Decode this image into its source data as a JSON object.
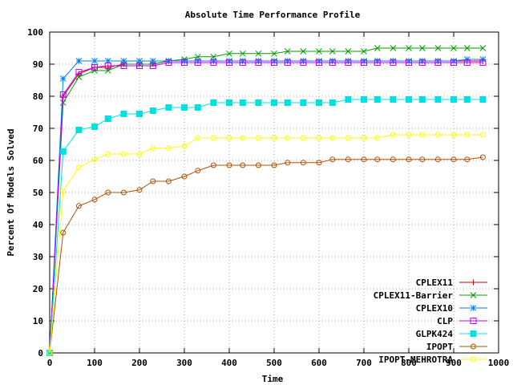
{
  "chart_data": {
    "type": "line",
    "title": "Absolute Time Performance Profile",
    "xlabel": "Time",
    "ylabel": "Percent Of Models Solved",
    "xlim": [
      0,
      1000
    ],
    "ylim": [
      0,
      100
    ],
    "xticks": [
      0,
      100,
      200,
      300,
      400,
      500,
      600,
      700,
      800,
      900,
      1000
    ],
    "yticks": [
      0,
      10,
      20,
      30,
      40,
      50,
      60,
      70,
      80,
      90,
      100
    ],
    "legend_position": "bottom-right",
    "x": [
      0,
      30,
      65,
      100,
      130,
      165,
      200,
      230,
      265,
      300,
      330,
      365,
      400,
      430,
      465,
      500,
      530,
      565,
      600,
      630,
      665,
      700,
      730,
      765,
      800,
      830,
      865,
      900,
      930,
      965
    ],
    "series": [
      {
        "name": "CPLEX11",
        "color": "#c00000",
        "marker": "plus",
        "values": [
          0,
          80,
          87,
          89,
          89,
          90,
          90,
          90,
          91,
          91,
          91,
          91,
          91,
          91,
          91,
          91,
          91,
          91,
          91,
          91,
          91,
          91,
          91,
          91,
          91,
          91,
          91,
          91,
          91,
          91
        ]
      },
      {
        "name": "CPLEX11-Barrier",
        "color": "#00a000",
        "marker": "x",
        "values": [
          0,
          78,
          86,
          88,
          88,
          90,
          90,
          90,
          91,
          91.5,
          92.3,
          92.3,
          93.3,
          93.3,
          93.3,
          93.3,
          94,
          94,
          94,
          94,
          94,
          94,
          95,
          95,
          95,
          95,
          95,
          95,
          95,
          95
        ]
      },
      {
        "name": "CPLEX10",
        "color": "#0080ff",
        "marker": "star",
        "values": [
          0,
          85.5,
          91,
          91,
          91,
          91,
          91,
          91,
          91,
          91,
          91,
          91,
          91,
          91,
          91,
          91,
          91,
          91,
          91,
          91,
          91,
          91,
          91,
          91,
          91,
          91,
          91,
          91,
          91.5,
          91.5
        ]
      },
      {
        "name": "CLP",
        "color": "#c000ff",
        "marker": "square-open",
        "values": [
          0,
          80.5,
          87.5,
          89,
          89.5,
          89.5,
          89.5,
          89.5,
          90.5,
          90.5,
          90.5,
          90.5,
          90.5,
          90.5,
          90.5,
          90.5,
          90.5,
          90.5,
          90.5,
          90.5,
          90.5,
          90.5,
          90.5,
          90.5,
          90.5,
          90.5,
          90.5,
          90.5,
          90.5,
          90.5
        ]
      },
      {
        "name": "GLPK424",
        "color": "#00e0e0",
        "marker": "square-filled",
        "values": [
          0,
          62.8,
          69.5,
          70.5,
          73,
          74.5,
          74.5,
          75.5,
          76.5,
          76.5,
          76.5,
          78,
          78,
          78,
          78,
          78,
          78,
          78,
          78,
          78,
          79,
          79,
          79,
          79,
          79,
          79,
          79,
          79,
          79,
          79
        ]
      },
      {
        "name": "IPOPT",
        "color": "#b05000",
        "marker": "circle",
        "values": [
          0,
          37.5,
          45.8,
          47.8,
          50,
          50,
          50.8,
          53.5,
          53.5,
          55,
          56.8,
          58.5,
          58.5,
          58.5,
          58.5,
          58.5,
          59.3,
          59.3,
          59.3,
          60.3,
          60.3,
          60.3,
          60.3,
          60.3,
          60.3,
          60.3,
          60.3,
          60.3,
          60.3,
          61
        ]
      },
      {
        "name": "IPOPT-MEHROTRA",
        "color": "#ffff00",
        "marker": "circle",
        "values": [
          0,
          50.5,
          57.8,
          60.3,
          62,
          62,
          62,
          63.8,
          63.8,
          64.5,
          67,
          67,
          67,
          67,
          67,
          67,
          67,
          67,
          67,
          67,
          67,
          67,
          67,
          68,
          68,
          68,
          68,
          68,
          68,
          68
        ]
      }
    ]
  }
}
